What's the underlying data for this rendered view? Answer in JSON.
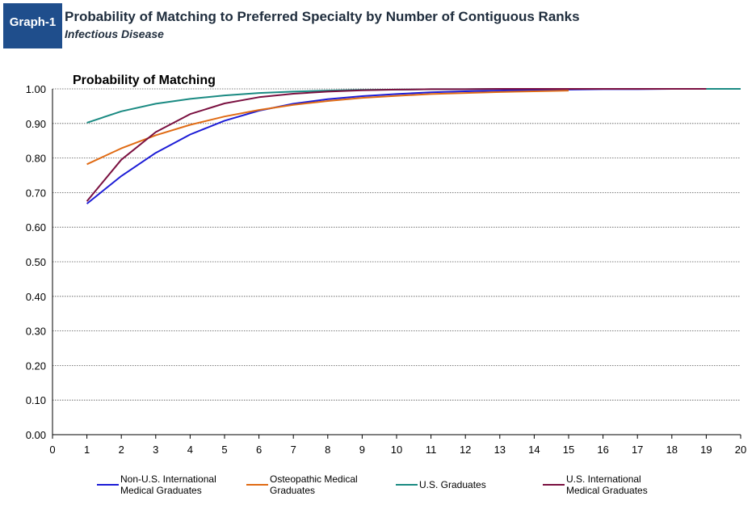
{
  "header": {
    "badge": "Graph-1",
    "title": "Probability of Matching to Preferred Specialty by Number of Contiguous Ranks",
    "subtitle": "Infectious Disease"
  },
  "chart_data": {
    "type": "line",
    "title": "Probability of Matching to Preferred Specialty by Number of Contiguous Ranks",
    "subtitle": "Infectious Disease",
    "ylabel": "Probability of Matching",
    "xlabel": "",
    "xlim": [
      0,
      20
    ],
    "ylim": [
      0,
      1
    ],
    "x_ticks": [
      "0",
      "1",
      "2",
      "3",
      "4",
      "5",
      "6",
      "7",
      "8",
      "9",
      "10",
      "11",
      "12",
      "13",
      "14",
      "15",
      "16",
      "17",
      "18",
      "19",
      "20"
    ],
    "y_ticks": [
      "0.00",
      "0.10",
      "0.20",
      "0.30",
      "0.40",
      "0.50",
      "0.60",
      "0.70",
      "0.80",
      "0.90",
      "1.00"
    ],
    "grid": "horizontal dotted",
    "legend_position": "bottom",
    "series": [
      {
        "name_lines": [
          "Non-U.S. International",
          "Medical Graduates"
        ],
        "color": "#1c1cd6",
        "x": [
          1,
          2,
          3,
          4,
          5,
          6,
          7,
          8,
          9,
          10,
          11,
          12,
          13,
          14,
          15,
          16,
          17,
          18,
          19
        ],
        "values": [
          0.668,
          0.748,
          0.815,
          0.868,
          0.908,
          0.937,
          0.957,
          0.97,
          0.979,
          0.985,
          0.99,
          0.993,
          0.995,
          0.997,
          0.998,
          0.999,
          0.999,
          1.0,
          1.0
        ]
      },
      {
        "name_lines": [
          "Osteopathic Medical",
          "Graduates"
        ],
        "color": "#e06b14",
        "x": [
          1,
          2,
          3,
          4,
          5,
          6,
          7,
          8,
          9,
          10,
          11,
          12,
          13,
          14,
          15
        ],
        "values": [
          0.782,
          0.828,
          0.866,
          0.896,
          0.92,
          0.939,
          0.954,
          0.965,
          0.974,
          0.98,
          0.985,
          0.988,
          0.991,
          0.993,
          0.995
        ]
      },
      {
        "name_lines": [
          "U.S. Graduates"
        ],
        "color": "#1a8a82",
        "x": [
          1,
          2,
          3,
          4,
          5,
          6,
          7,
          8,
          9,
          10,
          11,
          12,
          13,
          14,
          15,
          16,
          17,
          18,
          19,
          20
        ],
        "values": [
          0.902,
          0.935,
          0.957,
          0.971,
          0.981,
          0.988,
          0.992,
          0.995,
          0.997,
          0.998,
          0.999,
          0.999,
          1.0,
          1.0,
          1.0,
          1.0,
          1.0,
          1.0,
          1.0,
          1.0
        ]
      },
      {
        "name_lines": [
          "U.S. International",
          "Medical Graduates"
        ],
        "color": "#7a1040",
        "x": [
          1,
          2,
          3,
          4,
          5,
          6,
          7,
          8,
          9,
          10,
          11,
          12,
          13,
          14,
          15,
          16,
          17,
          18,
          19
        ],
        "values": [
          0.675,
          0.795,
          0.875,
          0.927,
          0.958,
          0.976,
          0.986,
          0.992,
          0.996,
          0.998,
          0.999,
          0.999,
          1.0,
          1.0,
          1.0,
          1.0,
          1.0,
          1.0,
          1.0
        ]
      }
    ]
  }
}
